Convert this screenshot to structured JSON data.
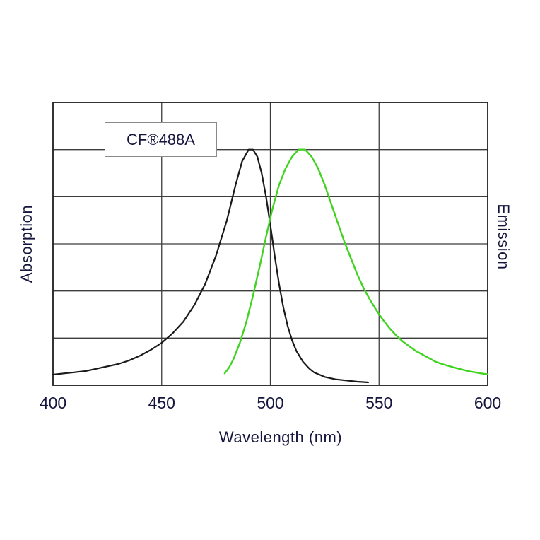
{
  "chart_data": {
    "type": "line",
    "label_box": "CF®488A",
    "xlabel": "Wavelength (nm)",
    "ylabel_left": "Absorption",
    "ylabel_right": "Emission",
    "xlim": [
      400,
      600
    ],
    "ylim": [
      0,
      1.2
    ],
    "x_ticks": [
      400,
      450,
      500,
      550,
      600
    ],
    "y_gridline_count": 6,
    "grid": true,
    "legend_position": "none",
    "colors": {
      "grid": "#3c3c3c",
      "border": "#1e1e1e",
      "text": "#15153d",
      "background": "#ffffff"
    },
    "series": [
      {
        "name": "Absorption",
        "color": "#1a1a1a",
        "width": 2.2,
        "points": [
          [
            400,
            0.045
          ],
          [
            405,
            0.05
          ],
          [
            410,
            0.055
          ],
          [
            415,
            0.06
          ],
          [
            420,
            0.07
          ],
          [
            425,
            0.08
          ],
          [
            430,
            0.09
          ],
          [
            435,
            0.105
          ],
          [
            440,
            0.125
          ],
          [
            445,
            0.15
          ],
          [
            450,
            0.18
          ],
          [
            455,
            0.22
          ],
          [
            460,
            0.27
          ],
          [
            465,
            0.34
          ],
          [
            470,
            0.43
          ],
          [
            475,
            0.55
          ],
          [
            480,
            0.7
          ],
          [
            484,
            0.85
          ],
          [
            487,
            0.95
          ],
          [
            490,
            1.0
          ],
          [
            492,
            1.0
          ],
          [
            494,
            0.97
          ],
          [
            496,
            0.9
          ],
          [
            498,
            0.8
          ],
          [
            500,
            0.68
          ],
          [
            502,
            0.55
          ],
          [
            504,
            0.43
          ],
          [
            506,
            0.33
          ],
          [
            508,
            0.25
          ],
          [
            510,
            0.19
          ],
          [
            512,
            0.145
          ],
          [
            515,
            0.1
          ],
          [
            518,
            0.07
          ],
          [
            520,
            0.055
          ],
          [
            525,
            0.035
          ],
          [
            530,
            0.025
          ],
          [
            535,
            0.02
          ],
          [
            540,
            0.015
          ],
          [
            545,
            0.012
          ]
        ]
      },
      {
        "name": "Emission",
        "color": "#41d321",
        "width": 2.4,
        "points": [
          [
            479,
            0.05
          ],
          [
            481,
            0.075
          ],
          [
            483,
            0.11
          ],
          [
            486,
            0.18
          ],
          [
            489,
            0.27
          ],
          [
            492,
            0.38
          ],
          [
            495,
            0.5
          ],
          [
            498,
            0.63
          ],
          [
            501,
            0.75
          ],
          [
            504,
            0.85
          ],
          [
            507,
            0.92
          ],
          [
            510,
            0.97
          ],
          [
            513,
            1.0
          ],
          [
            516,
            1.0
          ],
          [
            519,
            0.97
          ],
          [
            522,
            0.92
          ],
          [
            525,
            0.85
          ],
          [
            528,
            0.77
          ],
          [
            531,
            0.69
          ],
          [
            534,
            0.61
          ],
          [
            537,
            0.54
          ],
          [
            540,
            0.47
          ],
          [
            543,
            0.41
          ],
          [
            546,
            0.36
          ],
          [
            549,
            0.315
          ],
          [
            552,
            0.275
          ],
          [
            555,
            0.24
          ],
          [
            558,
            0.21
          ],
          [
            561,
            0.185
          ],
          [
            564,
            0.165
          ],
          [
            567,
            0.145
          ],
          [
            570,
            0.13
          ],
          [
            573,
            0.115
          ],
          [
            576,
            0.1
          ],
          [
            579,
            0.09
          ],
          [
            582,
            0.082
          ],
          [
            585,
            0.074
          ],
          [
            588,
            0.067
          ],
          [
            591,
            0.06
          ],
          [
            594,
            0.055
          ],
          [
            597,
            0.05
          ],
          [
            600,
            0.046
          ]
        ]
      }
    ]
  }
}
